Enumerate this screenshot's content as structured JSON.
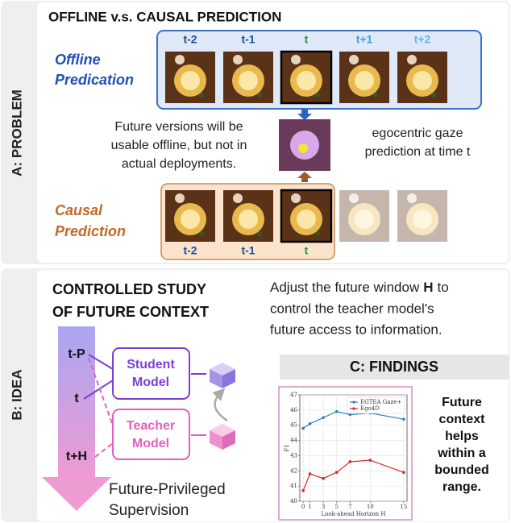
{
  "panel_a": {
    "label": "A: PROBLEM",
    "title": "OFFLINE v.s. CAUSAL PREDICTION",
    "offline_label": [
      "Offline",
      "Predication"
    ],
    "frame_labels_top": [
      "t-2",
      "t-1",
      "t",
      "t+1",
      "t+2"
    ],
    "causal_label": [
      "Causal",
      "Prediction"
    ],
    "frame_labels_bottom": [
      "t-2",
      "t-1",
      "t"
    ],
    "left_note": [
      "Future versions will be",
      "usable offline, but not in",
      "actual deployments."
    ],
    "right_note": [
      "egocentric gaze",
      "prediction at time t"
    ]
  },
  "panel_b": {
    "label": "B: IDEA",
    "title": [
      "CONTROLLED STUDY",
      "OF FUTURE CONTEXT"
    ],
    "description": [
      [
        "Adjust the future window",
        "H",
        "to"
      ],
      [
        "control the teacher model's"
      ],
      [
        "future access to information."
      ]
    ],
    "timeline": [
      "t-P",
      "t",
      "t+H"
    ],
    "student": [
      "Student",
      "Model"
    ],
    "teacher": [
      "Teacher",
      "Model"
    ],
    "footer": [
      "Future-Privileged",
      "Supervision"
    ]
  },
  "panel_c": {
    "label": "C: FINDINGS",
    "chart": {
      "type": "line",
      "xlabel": "Look-ahead Horizon H",
      "ylabel": "F1",
      "x": [
        0,
        1,
        3,
        5,
        7,
        10,
        15
      ],
      "series": [
        {
          "name": "EGTEA Gaze+",
          "color": "#2f7fc1",
          "values": [
            44.8,
            45.1,
            45.5,
            45.9,
            45.7,
            45.8,
            45.4
          ]
        },
        {
          "name": "Ego4D",
          "color": "#d62728",
          "values": [
            40.7,
            41.8,
            41.5,
            41.9,
            42.6,
            42.7,
            41.9
          ]
        }
      ],
      "xlim": [
        -0.5,
        15.5
      ],
      "ylim": [
        40,
        47
      ],
      "xticks": [
        0,
        1,
        3,
        5,
        7,
        10,
        15
      ],
      "yticks": [
        40,
        41,
        42,
        43,
        44,
        45,
        46,
        47
      ],
      "grid": true,
      "legend": "upper right"
    },
    "summary": [
      "Future",
      "context",
      "helps",
      "within a",
      "bounded",
      "range."
    ]
  }
}
